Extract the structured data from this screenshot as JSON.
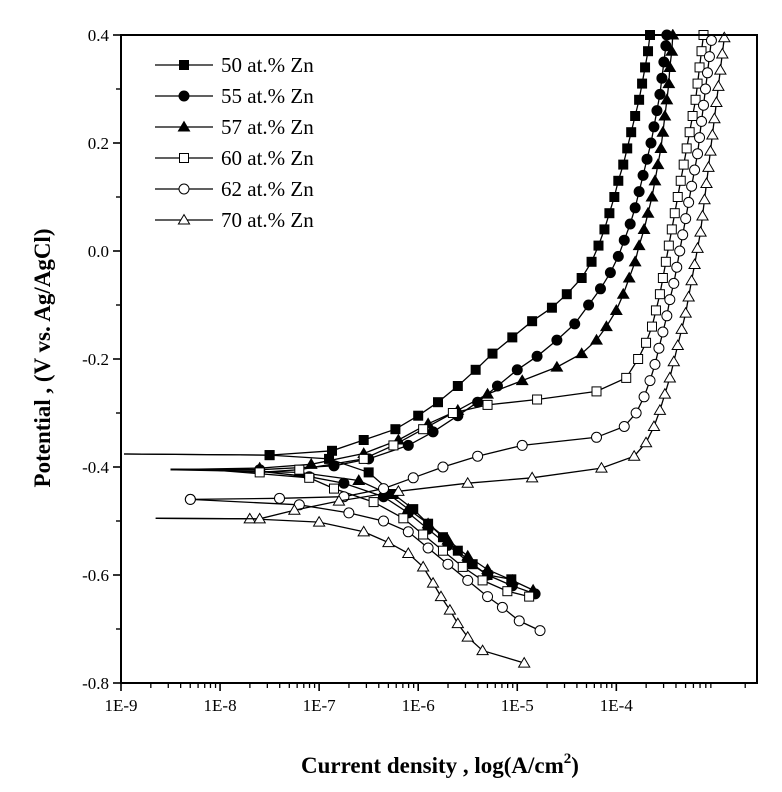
{
  "chart_data": {
    "type": "line",
    "title": "",
    "xlabel": "Current density ,  log(A/cm",
    "xlabel_sup": "2",
    "xlabel_end": ")",
    "ylabel": "Potential , (V vs. Ag/AgCl)",
    "xscale": "log",
    "xlim_log10": [
      -9,
      -2.58
    ],
    "ylim": [
      -0.8,
      0.4
    ],
    "x_ticks": [
      {
        "log10": -9,
        "label": "1E-9"
      },
      {
        "log10": -8,
        "label": "1E-8"
      },
      {
        "log10": -7,
        "label": "1E-7"
      },
      {
        "log10": -6,
        "label": "1E-6"
      },
      {
        "log10": -5,
        "label": "1E-5"
      },
      {
        "log10": -4,
        "label": "1E-4"
      }
    ],
    "y_ticks": [
      {
        "value": 0.4,
        "label": "0.4"
      },
      {
        "value": 0.2,
        "label": "0.2"
      },
      {
        "value": 0.0,
        "label": "0.0"
      },
      {
        "value": -0.2,
        "label": "-0.2"
      },
      {
        "value": -0.4,
        "label": "-0.4"
      },
      {
        "value": -0.6,
        "label": "-0.6"
      },
      {
        "value": -0.8,
        "label": "-0.8"
      }
    ],
    "grid": false,
    "legend_position": "top-left",
    "series": [
      {
        "name": "50 at.% Zn",
        "marker": "square",
        "filled": true,
        "color": "#000000",
        "cathodic": [
          [
            -5.06,
            -0.608
          ],
          [
            -5.3,
            -0.6
          ],
          [
            -5.45,
            -0.58
          ],
          [
            -5.6,
            -0.555
          ],
          [
            -5.75,
            -0.53
          ],
          [
            -5.9,
            -0.505
          ],
          [
            -6.05,
            -0.478
          ],
          [
            -6.25,
            -0.45
          ],
          [
            -6.5,
            -0.41
          ],
          [
            -6.9,
            -0.385
          ],
          [
            -7.5,
            -0.378
          ],
          [
            -8.97,
            -0.376
          ]
        ],
        "anodic": [
          [
            -8.97,
            -0.376
          ],
          [
            -7.5,
            -0.378
          ],
          [
            -6.87,
            -0.37
          ],
          [
            -6.55,
            -0.35
          ],
          [
            -6.23,
            -0.33
          ],
          [
            -6.0,
            -0.305
          ],
          [
            -5.8,
            -0.28
          ],
          [
            -5.6,
            -0.25
          ],
          [
            -5.42,
            -0.22
          ],
          [
            -5.25,
            -0.19
          ],
          [
            -5.05,
            -0.16
          ],
          [
            -4.85,
            -0.13
          ],
          [
            -4.65,
            -0.105
          ],
          [
            -4.5,
            -0.08
          ],
          [
            -4.35,
            -0.05
          ],
          [
            -4.25,
            -0.02
          ],
          [
            -4.18,
            0.01
          ],
          [
            -4.12,
            0.04
          ],
          [
            -4.07,
            0.07
          ],
          [
            -4.02,
            0.1
          ],
          [
            -3.98,
            0.13
          ],
          [
            -3.93,
            0.16
          ],
          [
            -3.89,
            0.19
          ],
          [
            -3.85,
            0.22
          ],
          [
            -3.81,
            0.25
          ],
          [
            -3.77,
            0.28
          ],
          [
            -3.74,
            0.31
          ],
          [
            -3.71,
            0.34
          ],
          [
            -3.68,
            0.37
          ],
          [
            -3.66,
            0.4
          ]
        ]
      },
      {
        "name": "55 at.% Zn",
        "marker": "circle",
        "filled": true,
        "color": "#000000",
        "cathodic": [
          [
            -4.82,
            -0.635
          ],
          [
            -5.05,
            -0.62
          ],
          [
            -5.3,
            -0.6
          ],
          [
            -5.5,
            -0.575
          ],
          [
            -5.7,
            -0.545
          ],
          [
            -5.9,
            -0.515
          ],
          [
            -6.1,
            -0.485
          ],
          [
            -6.35,
            -0.455
          ],
          [
            -6.75,
            -0.43
          ],
          [
            -7.1,
            -0.418
          ],
          [
            -7.6,
            -0.408
          ],
          [
            -8.5,
            -0.404
          ]
        ],
        "anodic": [
          [
            -8.5,
            -0.404
          ],
          [
            -7.6,
            -0.405
          ],
          [
            -6.85,
            -0.398
          ],
          [
            -6.5,
            -0.385
          ],
          [
            -6.1,
            -0.36
          ],
          [
            -5.85,
            -0.335
          ],
          [
            -5.6,
            -0.305
          ],
          [
            -5.4,
            -0.28
          ],
          [
            -5.2,
            -0.25
          ],
          [
            -5.0,
            -0.22
          ],
          [
            -4.8,
            -0.195
          ],
          [
            -4.6,
            -0.165
          ],
          [
            -4.42,
            -0.135
          ],
          [
            -4.28,
            -0.1
          ],
          [
            -4.16,
            -0.07
          ],
          [
            -4.06,
            -0.04
          ],
          [
            -3.98,
            -0.01
          ],
          [
            -3.92,
            0.02
          ],
          [
            -3.86,
            0.05
          ],
          [
            -3.81,
            0.08
          ],
          [
            -3.77,
            0.11
          ],
          [
            -3.73,
            0.14
          ],
          [
            -3.69,
            0.17
          ],
          [
            -3.65,
            0.2
          ],
          [
            -3.62,
            0.23
          ],
          [
            -3.59,
            0.26
          ],
          [
            -3.56,
            0.29
          ],
          [
            -3.54,
            0.32
          ],
          [
            -3.52,
            0.35
          ],
          [
            -3.5,
            0.38
          ],
          [
            -3.49,
            0.4
          ]
        ]
      },
      {
        "name": "57 at.% Zn",
        "marker": "triangle",
        "filled": true,
        "color": "#000000",
        "cathodic": [
          [
            -4.84,
            -0.628
          ],
          [
            -5.05,
            -0.61
          ],
          [
            -5.3,
            -0.59
          ],
          [
            -5.5,
            -0.565
          ],
          [
            -5.7,
            -0.535
          ],
          [
            -5.9,
            -0.505
          ],
          [
            -6.1,
            -0.478
          ],
          [
            -6.3,
            -0.45
          ],
          [
            -6.6,
            -0.425
          ],
          [
            -7.2,
            -0.41
          ],
          [
            -8.5,
            -0.405
          ]
        ],
        "anodic": [
          [
            -8.5,
            -0.405
          ],
          [
            -7.6,
            -0.402
          ],
          [
            -7.08,
            -0.395
          ],
          [
            -6.55,
            -0.375
          ],
          [
            -6.2,
            -0.35
          ],
          [
            -5.9,
            -0.32
          ],
          [
            -5.6,
            -0.295
          ],
          [
            -5.3,
            -0.265
          ],
          [
            -4.95,
            -0.24
          ],
          [
            -4.6,
            -0.215
          ],
          [
            -4.35,
            -0.19
          ],
          [
            -4.2,
            -0.165
          ],
          [
            -4.1,
            -0.14
          ],
          [
            -4.0,
            -0.11
          ],
          [
            -3.93,
            -0.08
          ],
          [
            -3.87,
            -0.05
          ],
          [
            -3.81,
            -0.02
          ],
          [
            -3.77,
            0.01
          ],
          [
            -3.72,
            0.04
          ],
          [
            -3.68,
            0.07
          ],
          [
            -3.64,
            0.1
          ],
          [
            -3.61,
            0.13
          ],
          [
            -3.58,
            0.16
          ],
          [
            -3.55,
            0.19
          ],
          [
            -3.53,
            0.22
          ],
          [
            -3.51,
            0.25
          ],
          [
            -3.49,
            0.28
          ],
          [
            -3.47,
            0.31
          ],
          [
            -3.46,
            0.34
          ],
          [
            -3.44,
            0.37
          ],
          [
            -3.43,
            0.4
          ]
        ]
      },
      {
        "name": "60 at.% Zn",
        "marker": "square",
        "filled": false,
        "color": "#000000",
        "cathodic": [
          [
            -4.88,
            -0.64
          ],
          [
            -5.1,
            -0.63
          ],
          [
            -5.35,
            -0.61
          ],
          [
            -5.55,
            -0.585
          ],
          [
            -5.75,
            -0.555
          ],
          [
            -5.95,
            -0.525
          ],
          [
            -6.15,
            -0.495
          ],
          [
            -6.45,
            -0.465
          ],
          [
            -6.85,
            -0.44
          ],
          [
            -7.1,
            -0.42
          ],
          [
            -8.1,
            -0.405
          ]
        ],
        "anodic": [
          [
            -8.1,
            -0.405
          ],
          [
            -7.6,
            -0.41
          ],
          [
            -7.2,
            -0.405
          ],
          [
            -6.55,
            -0.385
          ],
          [
            -6.25,
            -0.36
          ],
          [
            -5.95,
            -0.33
          ],
          [
            -5.65,
            -0.3
          ],
          [
            -5.3,
            -0.285
          ],
          [
            -4.8,
            -0.275
          ],
          [
            -4.2,
            -0.26
          ],
          [
            -3.9,
            -0.235
          ],
          [
            -3.78,
            -0.2
          ],
          [
            -3.7,
            -0.17
          ],
          [
            -3.64,
            -0.14
          ],
          [
            -3.6,
            -0.11
          ],
          [
            -3.56,
            -0.08
          ],
          [
            -3.53,
            -0.05
          ],
          [
            -3.5,
            -0.02
          ],
          [
            -3.47,
            0.01
          ],
          [
            -3.44,
            0.04
          ],
          [
            -3.41,
            0.07
          ],
          [
            -3.38,
            0.1
          ],
          [
            -3.35,
            0.13
          ],
          [
            -3.32,
            0.16
          ],
          [
            -3.29,
            0.19
          ],
          [
            -3.26,
            0.22
          ],
          [
            -3.23,
            0.25
          ],
          [
            -3.2,
            0.28
          ],
          [
            -3.18,
            0.31
          ],
          [
            -3.16,
            0.34
          ],
          [
            -3.14,
            0.37
          ],
          [
            -3.12,
            0.4
          ]
        ]
      },
      {
        "name": "62 at.% Zn",
        "marker": "circle",
        "filled": false,
        "color": "#000000",
        "cathodic": [
          [
            -4.77,
            -0.703
          ],
          [
            -4.98,
            -0.685
          ],
          [
            -5.15,
            -0.66
          ],
          [
            -5.3,
            -0.64
          ],
          [
            -5.5,
            -0.61
          ],
          [
            -5.7,
            -0.58
          ],
          [
            -5.9,
            -0.55
          ],
          [
            -6.1,
            -0.52
          ],
          [
            -6.35,
            -0.5
          ],
          [
            -6.7,
            -0.485
          ],
          [
            -7.2,
            -0.47
          ],
          [
            -8.3,
            -0.46
          ]
        ],
        "anodic": [
          [
            -8.3,
            -0.46
          ],
          [
            -7.4,
            -0.458
          ],
          [
            -6.75,
            -0.455
          ],
          [
            -6.35,
            -0.44
          ],
          [
            -6.05,
            -0.42
          ],
          [
            -5.75,
            -0.4
          ],
          [
            -5.4,
            -0.38
          ],
          [
            -4.95,
            -0.36
          ],
          [
            -4.2,
            -0.345
          ],
          [
            -3.92,
            -0.325
          ],
          [
            -3.8,
            -0.3
          ],
          [
            -3.72,
            -0.27
          ],
          [
            -3.66,
            -0.24
          ],
          [
            -3.61,
            -0.21
          ],
          [
            -3.57,
            -0.18
          ],
          [
            -3.53,
            -0.15
          ],
          [
            -3.49,
            -0.12
          ],
          [
            -3.46,
            -0.09
          ],
          [
            -3.42,
            -0.06
          ],
          [
            -3.39,
            -0.03
          ],
          [
            -3.36,
            0.0
          ],
          [
            -3.33,
            0.03
          ],
          [
            -3.3,
            0.06
          ],
          [
            -3.27,
            0.09
          ],
          [
            -3.24,
            0.12
          ],
          [
            -3.21,
            0.15
          ],
          [
            -3.18,
            0.18
          ],
          [
            -3.16,
            0.21
          ],
          [
            -3.14,
            0.24
          ],
          [
            -3.12,
            0.27
          ],
          [
            -3.1,
            0.3
          ],
          [
            -3.08,
            0.33
          ],
          [
            -3.06,
            0.36
          ],
          [
            -3.04,
            0.39
          ]
        ]
      },
      {
        "name": "70 at.% Zn",
        "marker": "triangle",
        "filled": false,
        "color": "#000000",
        "cathodic": [
          [
            -4.93,
            -0.763
          ],
          [
            -5.35,
            -0.74
          ],
          [
            -5.5,
            -0.715
          ],
          [
            -5.6,
            -0.69
          ],
          [
            -5.68,
            -0.665
          ],
          [
            -5.77,
            -0.64
          ],
          [
            -5.85,
            -0.615
          ],
          [
            -5.95,
            -0.585
          ],
          [
            -6.1,
            -0.56
          ],
          [
            -6.3,
            -0.54
          ],
          [
            -6.55,
            -0.52
          ],
          [
            -7.0,
            -0.502
          ],
          [
            -7.7,
            -0.496
          ],
          [
            -8.65,
            -0.495
          ]
        ],
        "anodic": [
          [
            -8.65,
            -0.495
          ],
          [
            -7.6,
            -0.496
          ],
          [
            -7.25,
            -0.48
          ],
          [
            -6.8,
            -0.463
          ],
          [
            -6.2,
            -0.445
          ],
          [
            -5.5,
            -0.43
          ],
          [
            -4.85,
            -0.42
          ],
          [
            -4.15,
            -0.402
          ],
          [
            -3.82,
            -0.38
          ],
          [
            -3.7,
            -0.355
          ],
          [
            -3.62,
            -0.325
          ],
          [
            -3.56,
            -0.295
          ],
          [
            -3.51,
            -0.265
          ],
          [
            -3.46,
            -0.235
          ],
          [
            -3.42,
            -0.205
          ],
          [
            -3.38,
            -0.175
          ],
          [
            -3.34,
            -0.145
          ],
          [
            -3.3,
            -0.115
          ],
          [
            -3.27,
            -0.085
          ],
          [
            -3.24,
            -0.055
          ],
          [
            -3.21,
            -0.025
          ],
          [
            -3.18,
            0.005
          ],
          [
            -3.15,
            0.035
          ],
          [
            -3.13,
            0.065
          ],
          [
            -3.11,
            0.095
          ],
          [
            -3.09,
            0.125
          ],
          [
            -3.07,
            0.155
          ],
          [
            -3.05,
            0.185
          ],
          [
            -3.03,
            0.215
          ],
          [
            -3.01,
            0.245
          ],
          [
            -2.99,
            0.275
          ],
          [
            -2.97,
            0.305
          ],
          [
            -2.95,
            0.335
          ],
          [
            -2.93,
            0.365
          ],
          [
            -2.91,
            0.395
          ]
        ]
      }
    ]
  }
}
